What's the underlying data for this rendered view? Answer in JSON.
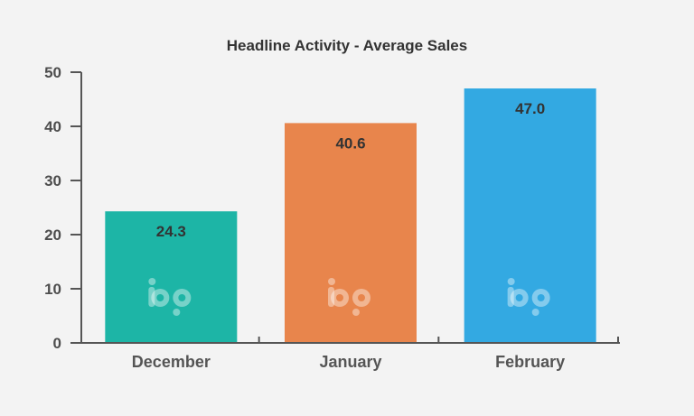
{
  "chart_data": {
    "type": "bar",
    "title": "Headline Activity - Average Sales",
    "xlabel": "",
    "ylabel": "",
    "categories": [
      "December",
      "January",
      "February"
    ],
    "values": [
      24.3,
      40.6,
      47.0
    ],
    "value_labels": [
      "24.3",
      "40.6",
      "47.0"
    ],
    "ylim": [
      0,
      50
    ],
    "yticks": [
      0,
      10,
      20,
      30,
      40,
      50
    ],
    "grid": false,
    "legend": "none",
    "bar_colors": [
      "#1db5a6",
      "#e8854c",
      "#33a9e2"
    ],
    "watermark_logo": "bp-logo-icon"
  }
}
